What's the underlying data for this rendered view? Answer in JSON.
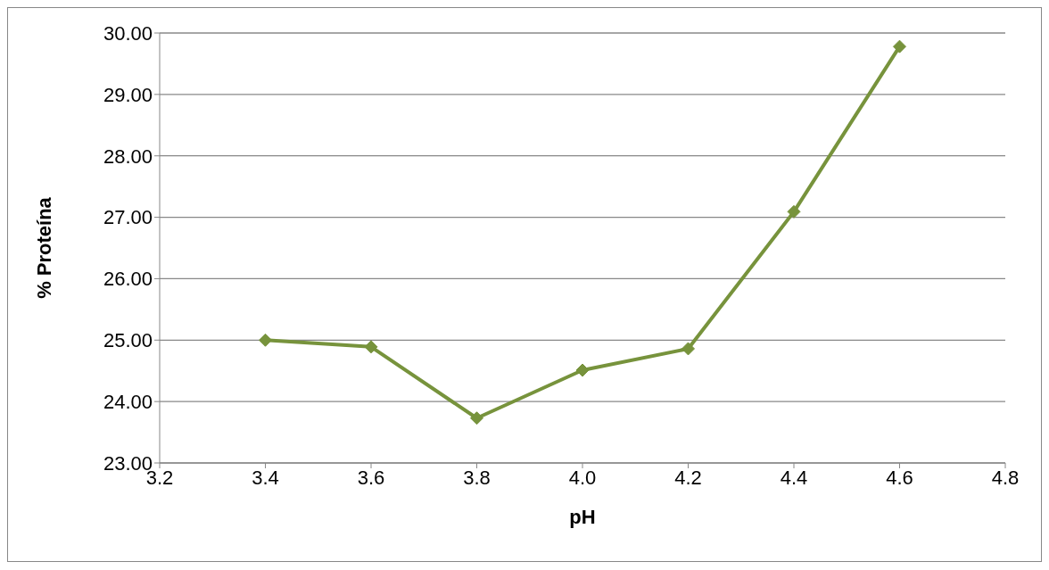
{
  "chart_data": {
    "type": "line",
    "xlabel": "pH",
    "ylabel": "% Proteína",
    "x": [
      3.4,
      3.6,
      3.8,
      4.0,
      4.2,
      4.4,
      4.6
    ],
    "series": [
      {
        "color": "#77933c",
        "values": [
          25.0,
          24.89,
          23.73,
          24.51,
          24.86,
          27.09,
          29.78
        ]
      }
    ],
    "xlim": [
      3.2,
      4.8
    ],
    "xticks": [
      3.2,
      3.4,
      3.6,
      3.8,
      {
        "value": 4.0,
        "label": "4.0"
      },
      4.2,
      4.4,
      4.6,
      4.8
    ],
    "ylim": [
      23,
      30
    ],
    "yticks": [
      {
        "value": 23,
        "label": "23.00"
      },
      {
        "value": 24,
        "label": "24.00"
      },
      {
        "value": 25,
        "label": "25.00"
      },
      {
        "value": 26,
        "label": "26.00"
      },
      {
        "value": 27,
        "label": "27.00"
      },
      {
        "value": 28,
        "label": "28.00"
      },
      {
        "value": 29,
        "label": "29.00"
      },
      {
        "value": 30,
        "label": "30.00"
      }
    ],
    "grid": "y",
    "marker": "diamond",
    "line_style": "solid"
  }
}
